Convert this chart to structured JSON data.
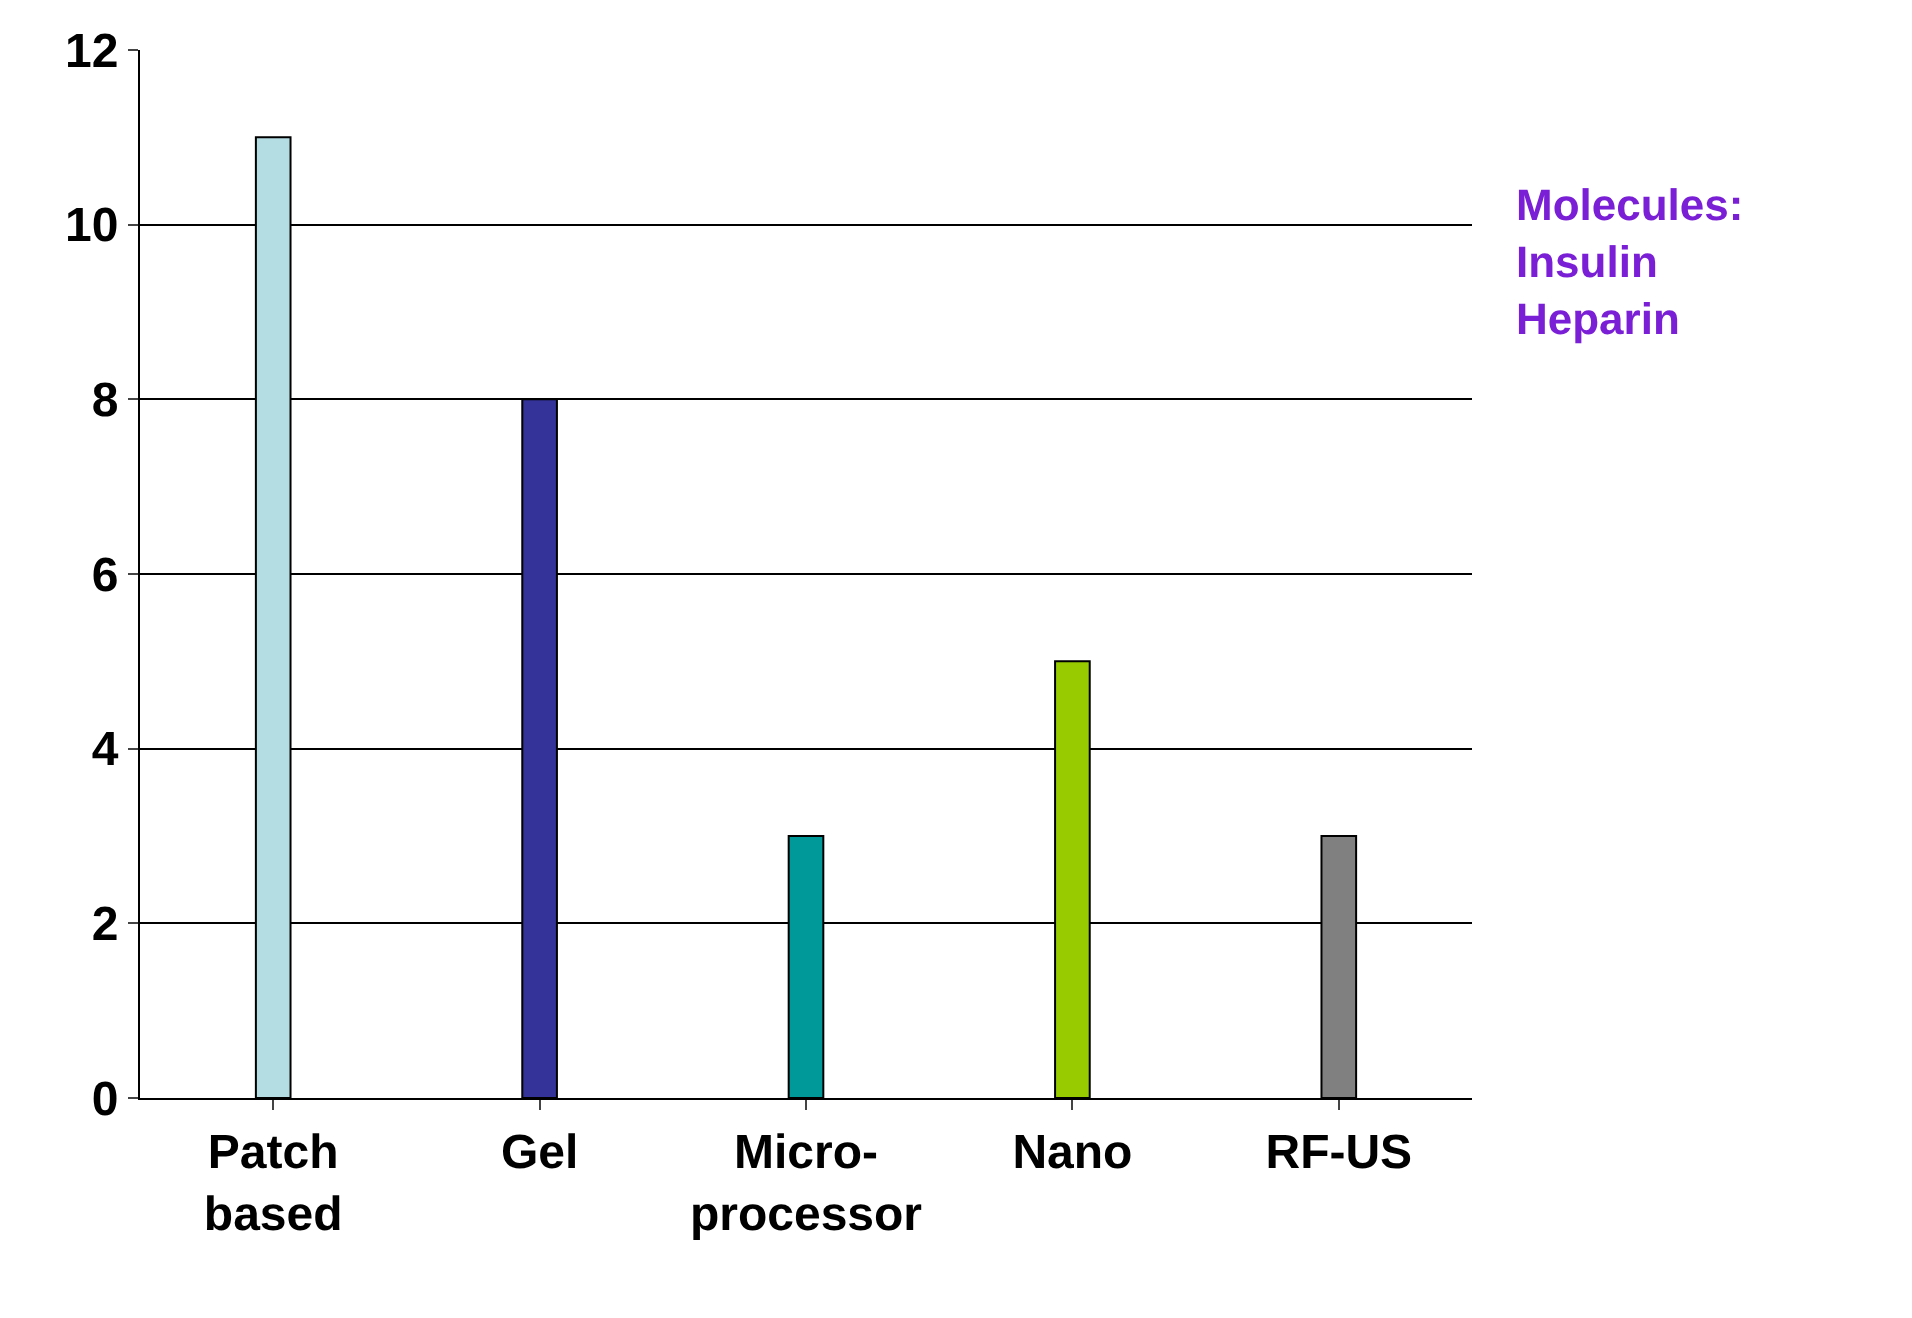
{
  "chart_data": {
    "type": "bar",
    "categories": [
      "Patch\nbased",
      "Gel",
      "Micro-\nprocessor",
      "Nano",
      "RF-US"
    ],
    "values": [
      11,
      8,
      3,
      5,
      3
    ],
    "colors": [
      "#b4dde3",
      "#333399",
      "#009999",
      "#99cc00",
      "#808080"
    ],
    "ylim": [
      0,
      12
    ],
    "yticks": [
      0,
      2,
      4,
      6,
      8,
      10,
      12
    ],
    "grid": "y",
    "annotations": [
      "Molecules:\nInsulin\nHeparin"
    ]
  }
}
